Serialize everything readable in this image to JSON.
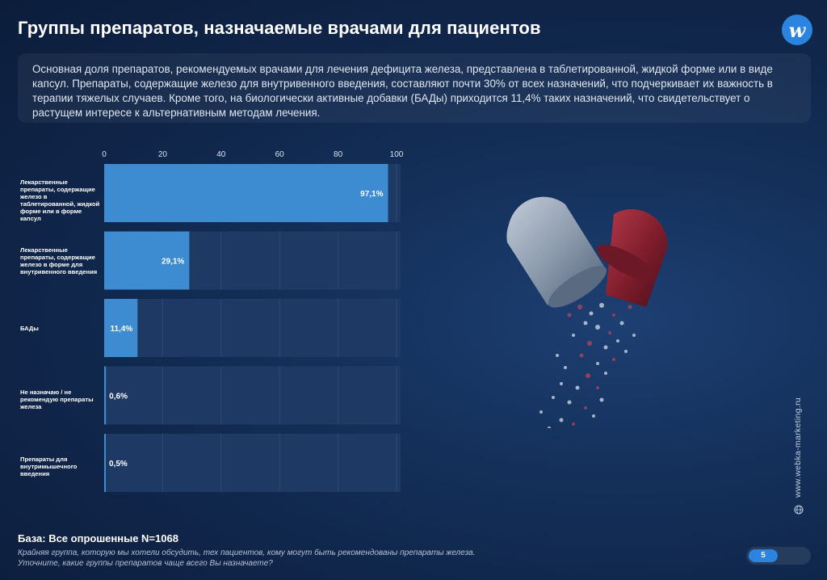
{
  "header": {
    "title": "Группы препаратов, назначаемые врачами для пациентов",
    "logo_letter": "w"
  },
  "intro": {
    "text": "Основная доля препаратов, рекомендуемых врачами для лечения дефицита железа, представлена в таблетированной, жидкой форме или в виде капсул. Препараты, содержащие железо для внутривенного введения, составляют почти 30% от всех назначений, что подчеркивает их важность в терапии тяжелых случаев. Кроме того, на биологически активные добавки (БАДы) приходится 11,4% таких назначений, что свидетельствует о растущем интересе к альтернативным методам лечения."
  },
  "chart_data": {
    "type": "bar",
    "orientation": "horizontal",
    "categories": [
      "Лекарственные препараты, содержащие железо в таблетированной, жидкой форме или в форме капсул",
      "Лекарственные препараты, содержащие железо в форме для внутривенного введения",
      "БАДы",
      "Не назначаю / не рекомендую препараты железа",
      "Препараты для внутримышечного введения"
    ],
    "values": [
      97.1,
      29.1,
      11.4,
      0.6,
      0.5
    ],
    "value_labels": [
      "97,1%",
      "29,1%",
      "11,4%",
      "0,6%",
      "0,5%"
    ],
    "x_ticks": [
      0,
      20,
      40,
      60,
      80,
      100
    ],
    "xlim": [
      0,
      100
    ],
    "axis_position": "top",
    "bar_color": "#3d8bd0",
    "track_color": "#1e3a64"
  },
  "footer": {
    "base": "База: Все опрошенные N=1068",
    "note_line1": "Крайняя группа, которую мы хотели обсудить, тех пациентов, кому могут быть рекомендованы препараты железа.",
    "note_line2": "Уточните, какие группы препаратов чаще всего Вы назначаете?",
    "page": "5",
    "site": "www.webka-marketing.ru"
  }
}
